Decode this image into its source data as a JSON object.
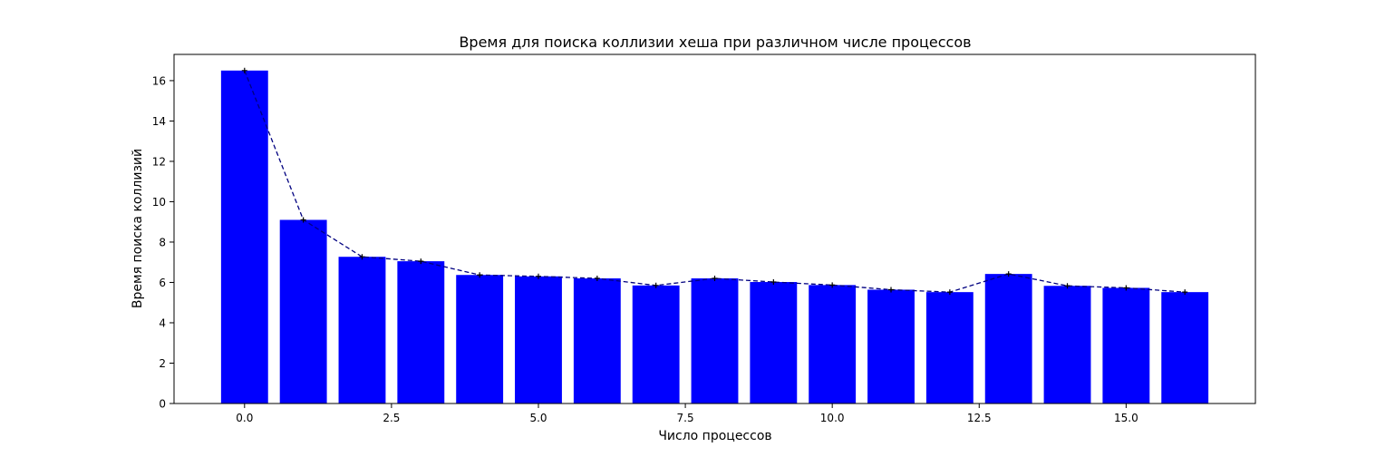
{
  "chart_data": {
    "type": "bar",
    "title": "Время для поиска коллизии хеша при различном числе процессов",
    "xlabel": "Число процессов",
    "ylabel": "Время поиска коллизий",
    "x": [
      0,
      1,
      2,
      3,
      4,
      5,
      6,
      7,
      8,
      9,
      10,
      11,
      12,
      13,
      14,
      15,
      16
    ],
    "values": [
      16.5,
      9.1,
      7.27,
      7.05,
      6.37,
      6.3,
      6.2,
      5.85,
      6.2,
      6.02,
      5.87,
      5.64,
      5.52,
      6.42,
      5.83,
      5.73,
      5.52
    ],
    "xlim": [
      -1.2,
      17.2
    ],
    "ylim": [
      0,
      17.3
    ],
    "xticks": [
      0.0,
      2.5,
      5.0,
      7.5,
      10.0,
      12.5,
      15.0
    ],
    "xtick_labels": [
      "0.0",
      "2.5",
      "5.0",
      "7.5",
      "10.0",
      "12.5",
      "15.0"
    ],
    "yticks": [
      0,
      2,
      4,
      6,
      8,
      10,
      12,
      14,
      16
    ],
    "ytick_labels": [
      "0",
      "2",
      "4",
      "6",
      "8",
      "10",
      "12",
      "14",
      "16"
    ],
    "bar_width": 0.8,
    "bar_color": "#0000ff",
    "line_color": "#000080",
    "marker_color": "#000000",
    "line_style": "dashed",
    "grid": false
  }
}
